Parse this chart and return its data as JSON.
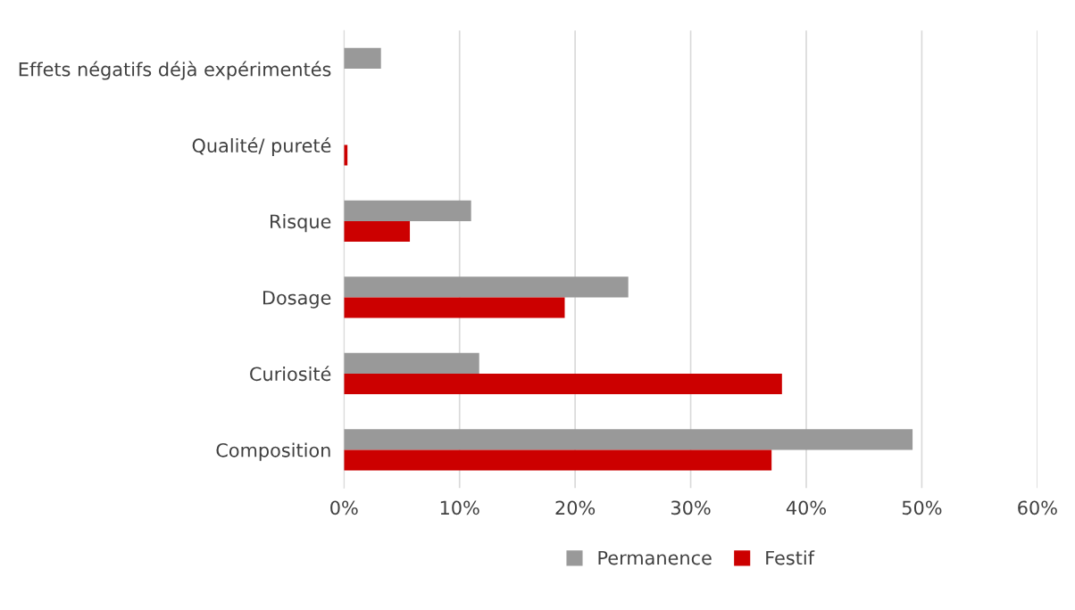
{
  "chart_data": {
    "type": "bar",
    "orientation": "horizontal",
    "categories": [
      "Effets négatifs déjà expérimentés",
      "Qualité/ pureté",
      "Risque",
      "Dosage",
      "Curiosité",
      "Composition"
    ],
    "series": [
      {
        "name": "Permanence",
        "color": "#999999",
        "values": [
          3.2,
          null,
          11.0,
          24.6,
          11.7,
          49.2
        ]
      },
      {
        "name": "Festif",
        "color": "#cc0000",
        "values": [
          null,
          0.3,
          5.7,
          19.1,
          37.9,
          37.0
        ]
      }
    ],
    "xlim": [
      0,
      60
    ],
    "xticks": [
      {
        "value": 0,
        "label": "0%"
      },
      {
        "value": 10,
        "label": "10%"
      },
      {
        "value": 20,
        "label": "20%"
      },
      {
        "value": 30,
        "label": "30%"
      },
      {
        "value": 40,
        "label": "40%"
      },
      {
        "value": 50,
        "label": "50%"
      },
      {
        "value": 60,
        "label": "60%"
      }
    ],
    "grid": "x",
    "legend": "bottom"
  }
}
